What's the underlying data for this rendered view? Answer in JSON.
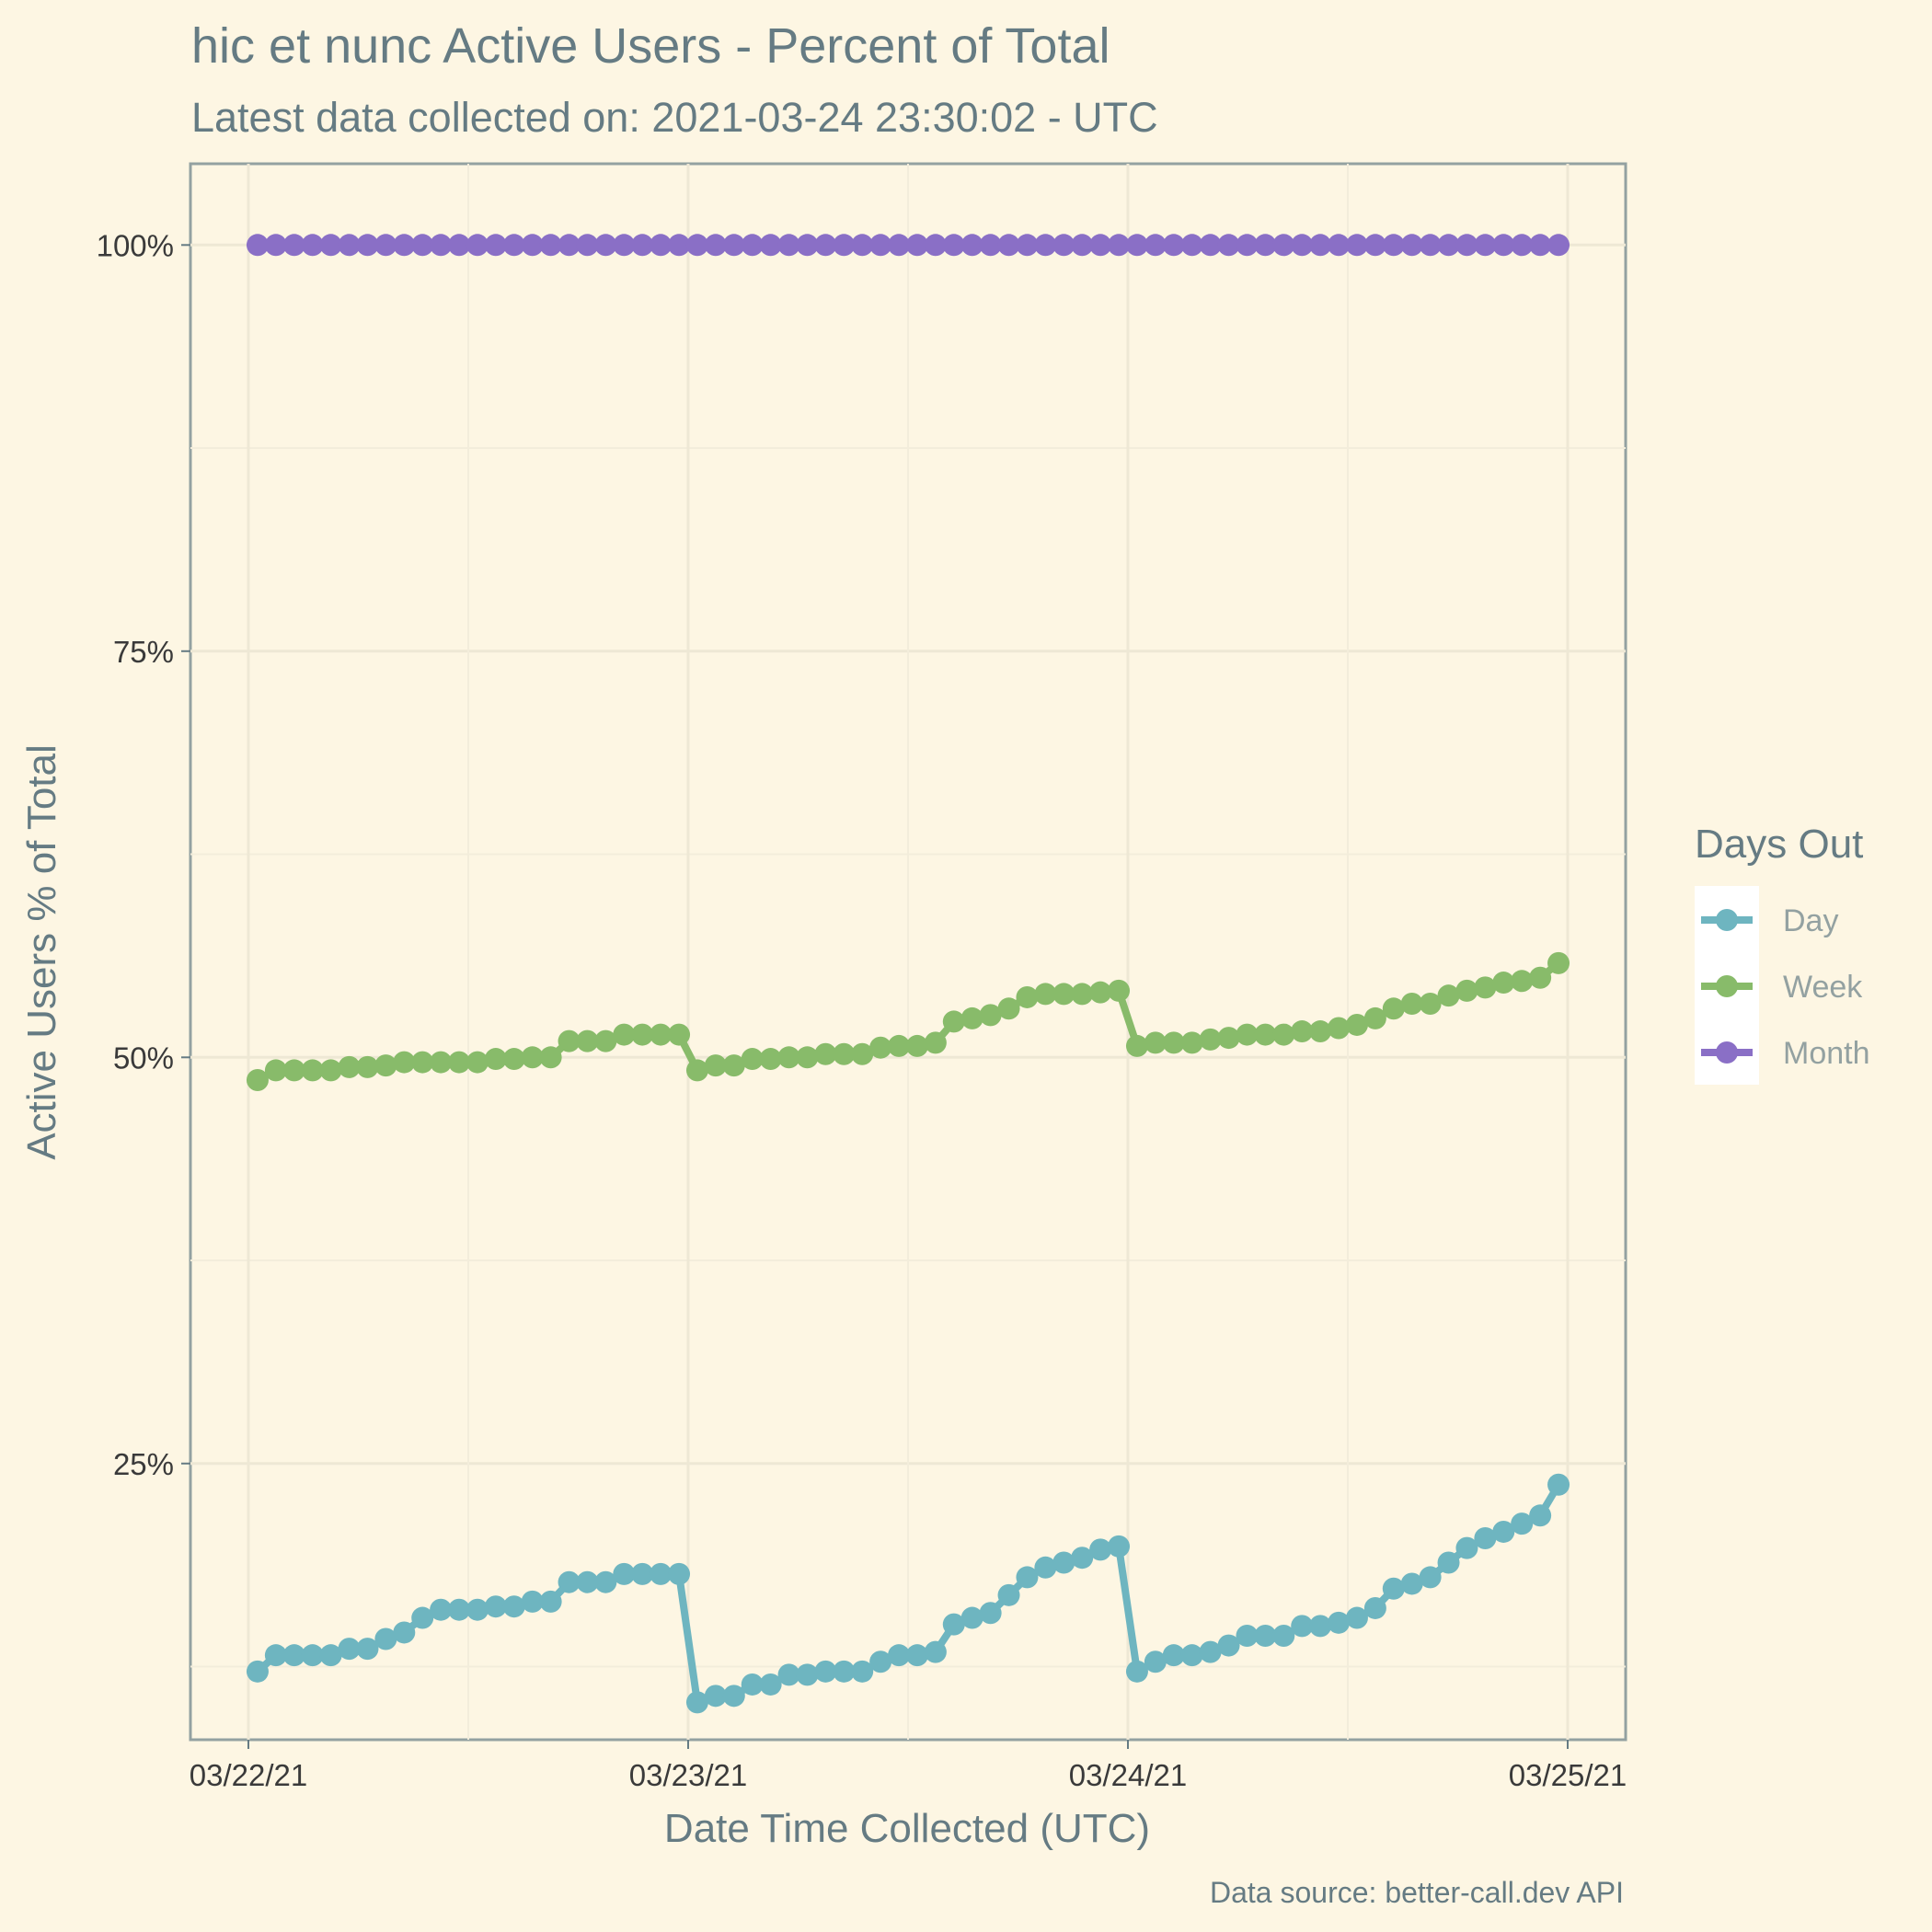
{
  "chart_data": {
    "type": "line",
    "title": "hic et nunc Active Users - Percent of Total",
    "subtitle": "Latest data collected on: 2021-03-24 23:30:02  - UTC",
    "xlabel": "Date Time Collected (UTC)",
    "ylabel": "Active Users % of Total",
    "caption": "Data source: better-call.dev API",
    "x_ticks": [
      "03/22/21",
      "03/23/21",
      "03/24/21",
      "03/25/21"
    ],
    "y_ticks": [
      "25%",
      "50%",
      "75%",
      "100%"
    ],
    "ylim": [
      8,
      105
    ],
    "x_start": "2021-03-22 00:00",
    "x_end": "2021-03-25 00:00",
    "x_step_hours": 1,
    "grid": true,
    "legend": {
      "title": "Days Out",
      "position": "right"
    },
    "series": [
      {
        "name": "Day",
        "color": "#6eb5c0",
        "values": [
          12.2,
          13.2,
          13.2,
          13.2,
          13.2,
          13.6,
          13.6,
          14.2,
          14.6,
          15.5,
          16.0,
          16.0,
          16.0,
          16.2,
          16.2,
          16.5,
          16.5,
          17.7,
          17.7,
          17.7,
          18.2,
          18.2,
          18.2,
          18.2,
          10.3,
          10.7,
          10.7,
          11.4,
          11.4,
          12.0,
          12.0,
          12.2,
          12.2,
          12.2,
          12.8,
          13.2,
          13.2,
          13.4,
          15.1,
          15.5,
          15.8,
          16.9,
          18.0,
          18.6,
          18.9,
          19.2,
          19.7,
          19.9,
          12.2,
          12.8,
          13.2,
          13.2,
          13.4,
          13.8,
          14.4,
          14.4,
          14.4,
          15.0,
          15.0,
          15.2,
          15.5,
          16.1,
          17.3,
          17.6,
          18.0,
          18.9,
          19.8,
          20.4,
          20.8,
          21.3,
          21.8,
          23.7
        ]
      },
      {
        "name": "Week",
        "color": "#88bb6a",
        "values": [
          48.6,
          49.2,
          49.2,
          49.2,
          49.2,
          49.4,
          49.4,
          49.5,
          49.7,
          49.7,
          49.7,
          49.7,
          49.7,
          49.9,
          49.9,
          50.0,
          50.0,
          51.0,
          51.0,
          51.0,
          51.4,
          51.4,
          51.4,
          51.4,
          49.2,
          49.5,
          49.5,
          49.9,
          49.9,
          50.0,
          50.0,
          50.2,
          50.2,
          50.2,
          50.6,
          50.7,
          50.7,
          50.9,
          52.2,
          52.4,
          52.6,
          53.0,
          53.7,
          53.9,
          53.9,
          53.9,
          54.0,
          54.1,
          50.7,
          50.9,
          50.9,
          50.9,
          51.1,
          51.2,
          51.4,
          51.4,
          51.4,
          51.6,
          51.6,
          51.8,
          52.0,
          52.4,
          53.0,
          53.3,
          53.3,
          53.8,
          54.1,
          54.3,
          54.6,
          54.7,
          54.9,
          55.8
        ]
      },
      {
        "name": "Month",
        "color": "#8a6fc6",
        "values": [
          100,
          100,
          100,
          100,
          100,
          100,
          100,
          100,
          100,
          100,
          100,
          100,
          100,
          100,
          100,
          100,
          100,
          100,
          100,
          100,
          100,
          100,
          100,
          100,
          100,
          100,
          100,
          100,
          100,
          100,
          100,
          100,
          100,
          100,
          100,
          100,
          100,
          100,
          100,
          100,
          100,
          100,
          100,
          100,
          100,
          100,
          100,
          100,
          100,
          100,
          100,
          100,
          100,
          100,
          100,
          100,
          100,
          100,
          100,
          100,
          100,
          100,
          100,
          100,
          100,
          100,
          100,
          100,
          100,
          100,
          100,
          100
        ]
      }
    ]
  }
}
